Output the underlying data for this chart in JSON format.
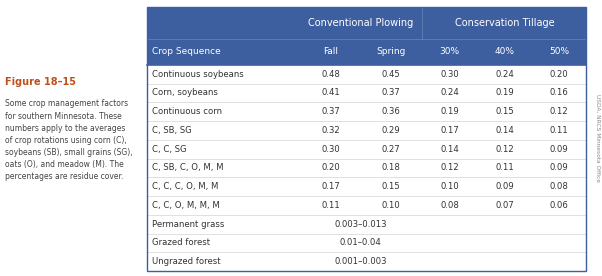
{
  "header_bg": "#3d5f9f",
  "header_text_color": "#ffffff",
  "table_border_color": "#3d5f9f",
  "figure_label_color": "#c0501a",
  "col_headers_sub": [
    "Crop Sequence",
    "Fall",
    "Spring",
    "30%",
    "40%",
    "50%"
  ],
  "rows": [
    [
      "Continuous soybeans",
      "0.48",
      "0.45",
      "0.30",
      "0.24",
      "0.20"
    ],
    [
      "Corn, soybeans",
      "0.41",
      "0.37",
      "0.24",
      "0.19",
      "0.16"
    ],
    [
      "Continuous corn",
      "0.37",
      "0.36",
      "0.19",
      "0.15",
      "0.12"
    ],
    [
      "C, SB, SG",
      "0.32",
      "0.29",
      "0.17",
      "0.14",
      "0.11"
    ],
    [
      "C, C, SG",
      "0.30",
      "0.27",
      "0.14",
      "0.12",
      "0.09"
    ],
    [
      "C, SB, C, O, M, M",
      "0.20",
      "0.18",
      "0.12",
      "0.11",
      "0.09"
    ],
    [
      "C, C, C, O, M, M",
      "0.17",
      "0.15",
      "0.10",
      "0.09",
      "0.08"
    ],
    [
      "C, C, O, M, M, M",
      "0.11",
      "0.10",
      "0.08",
      "0.07",
      "0.06"
    ],
    [
      "Permanent grass",
      "0.003–0.013",
      "",
      "",
      "",
      ""
    ],
    [
      "Grazed forest",
      "0.01–0.04",
      "",
      "",
      "",
      ""
    ],
    [
      "Ungrazed forest",
      "0.001–0.003",
      "",
      "",
      "",
      ""
    ]
  ],
  "figure_label": "Figure 18–15",
  "figure_text": "Some crop management factors\nfor southern Minnesota. These\nnumbers apply to the averages\nof crop rotations using corn (C),\nsoybeans (SB), small grains (SG),\noats (O), and meadow (M). The\npercentages are residue cover.",
  "side_label": "USDA, NRCS Minnesota Office",
  "conv_label": "Conventional Plowing",
  "cons_label": "Conservation Tillage"
}
